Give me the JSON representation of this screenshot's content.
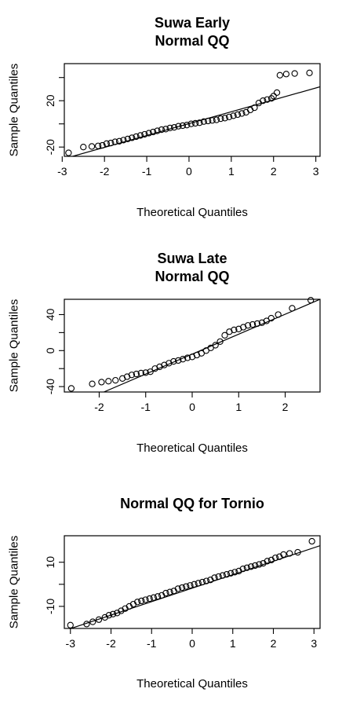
{
  "chart_data": [
    {
      "type": "scatter",
      "title_lines": [
        "Suwa Early",
        "Normal QQ"
      ],
      "xlabel": "Theoretical Quantiles",
      "ylabel": "Sample Quantiles",
      "xlim": [
        -2.95,
        3.1
      ],
      "ylim": [
        -28,
        52
      ],
      "xticks": [
        -3,
        -2,
        -1,
        0,
        1,
        2,
        3
      ],
      "yticks": [
        -20,
        0,
        20,
        40
      ],
      "ytick_labels": [
        "-20",
        "",
        "20",
        ""
      ],
      "ref_line": [
        [
          -2.95,
          -30
        ],
        [
          3.1,
          32
        ]
      ],
      "points": [
        [
          -2.85,
          -25
        ],
        [
          -2.5,
          -20
        ],
        [
          -2.3,
          -19.5
        ],
        [
          -2.15,
          -19
        ],
        [
          -2.05,
          -18.5
        ],
        [
          -1.95,
          -17
        ],
        [
          -1.85,
          -16.5
        ],
        [
          -1.75,
          -15.5
        ],
        [
          -1.65,
          -15
        ],
        [
          -1.55,
          -14
        ],
        [
          -1.45,
          -13
        ],
        [
          -1.35,
          -12
        ],
        [
          -1.25,
          -11
        ],
        [
          -1.15,
          -10
        ],
        [
          -1.05,
          -9
        ],
        [
          -0.95,
          -8
        ],
        [
          -0.85,
          -7
        ],
        [
          -0.75,
          -6
        ],
        [
          -0.65,
          -5
        ],
        [
          -0.55,
          -4.5
        ],
        [
          -0.45,
          -3.5
        ],
        [
          -0.35,
          -3
        ],
        [
          -0.25,
          -2
        ],
        [
          -0.15,
          -1.5
        ],
        [
          -0.05,
          -1
        ],
        [
          0.05,
          0
        ],
        [
          0.15,
          0.5
        ],
        [
          0.25,
          1
        ],
        [
          0.35,
          2
        ],
        [
          0.45,
          2.5
        ],
        [
          0.55,
          3
        ],
        [
          0.65,
          3.5
        ],
        [
          0.75,
          4.5
        ],
        [
          0.85,
          5
        ],
        [
          0.95,
          6
        ],
        [
          1.05,
          7
        ],
        [
          1.15,
          8
        ],
        [
          1.25,
          9
        ],
        [
          1.35,
          10
        ],
        [
          1.45,
          12
        ],
        [
          1.55,
          14
        ],
        [
          1.65,
          18
        ],
        [
          1.75,
          20
        ],
        [
          1.85,
          21
        ],
        [
          1.95,
          22
        ],
        [
          2.0,
          24
        ],
        [
          2.08,
          27
        ],
        [
          2.15,
          42
        ],
        [
          2.3,
          43
        ],
        [
          2.5,
          43.5
        ],
        [
          2.85,
          44
        ]
      ]
    },
    {
      "type": "scatter",
      "title_lines": [
        "Suwa Late",
        "Normal QQ"
      ],
      "xlabel": "Theoretical Quantiles",
      "ylabel": "Sample Quantiles",
      "xlim": [
        -2.75,
        2.75
      ],
      "ylim": [
        -46,
        57
      ],
      "xticks": [
        -2,
        -1,
        0,
        1,
        2
      ],
      "yticks": [
        -40,
        -20,
        0,
        20,
        40
      ],
      "ytick_labels": [
        "-40",
        "",
        "0",
        "",
        "40"
      ],
      "ref_line": [
        [
          -1.9,
          -46
        ],
        [
          2.75,
          57
        ]
      ],
      "points": [
        [
          -2.6,
          -42
        ],
        [
          -2.15,
          -37
        ],
        [
          -1.95,
          -35
        ],
        [
          -1.8,
          -34
        ],
        [
          -1.65,
          -33
        ],
        [
          -1.5,
          -31
        ],
        [
          -1.4,
          -29
        ],
        [
          -1.3,
          -27
        ],
        [
          -1.2,
          -26
        ],
        [
          -1.1,
          -25
        ],
        [
          -1.0,
          -24.5
        ],
        [
          -0.9,
          -23.5
        ],
        [
          -0.8,
          -20
        ],
        [
          -0.7,
          -18
        ],
        [
          -0.6,
          -16
        ],
        [
          -0.5,
          -14
        ],
        [
          -0.4,
          -12
        ],
        [
          -0.3,
          -11
        ],
        [
          -0.2,
          -9.5
        ],
        [
          -0.1,
          -8
        ],
        [
          0.0,
          -7
        ],
        [
          0.1,
          -5
        ],
        [
          0.2,
          -3
        ],
        [
          0.3,
          0
        ],
        [
          0.4,
          3
        ],
        [
          0.5,
          6
        ],
        [
          0.6,
          10
        ],
        [
          0.7,
          17
        ],
        [
          0.8,
          21
        ],
        [
          0.9,
          23
        ],
        [
          1.0,
          24
        ],
        [
          1.1,
          26
        ],
        [
          1.2,
          28
        ],
        [
          1.3,
          29
        ],
        [
          1.4,
          30
        ],
        [
          1.5,
          31
        ],
        [
          1.6,
          33
        ],
        [
          1.7,
          36
        ],
        [
          1.85,
          40
        ],
        [
          2.15,
          47
        ],
        [
          2.55,
          56
        ]
      ]
    },
    {
      "type": "scatter",
      "title_lines": [
        "Normal QQ for Tornio"
      ],
      "xlabel": "Theoretical Quantiles",
      "ylabel": "Sample Quantiles",
      "xlim": [
        -3.15,
        3.15
      ],
      "ylim": [
        -20,
        22
      ],
      "xticks": [
        -3,
        -2,
        -1,
        0,
        1,
        2,
        3
      ],
      "yticks": [
        -10,
        0,
        10
      ],
      "ytick_labels": [
        "-10",
        "",
        "10"
      ],
      "ref_line": [
        [
          -3.15,
          -21
        ],
        [
          3.15,
          17.5
        ]
      ],
      "points": [
        [
          -3.0,
          -18.5
        ],
        [
          -2.6,
          -18
        ],
        [
          -2.45,
          -17
        ],
        [
          -2.3,
          -16
        ],
        [
          -2.15,
          -15
        ],
        [
          -2.05,
          -14
        ],
        [
          -1.95,
          -13.5
        ],
        [
          -1.85,
          -13
        ],
        [
          -1.75,
          -12
        ],
        [
          -1.65,
          -11
        ],
        [
          -1.55,
          -10
        ],
        [
          -1.45,
          -9
        ],
        [
          -1.35,
          -8
        ],
        [
          -1.25,
          -7.5
        ],
        [
          -1.15,
          -7
        ],
        [
          -1.05,
          -6.5
        ],
        [
          -0.95,
          -6
        ],
        [
          -0.85,
          -5.5
        ],
        [
          -0.75,
          -5
        ],
        [
          -0.65,
          -4
        ],
        [
          -0.55,
          -3.5
        ],
        [
          -0.45,
          -3
        ],
        [
          -0.35,
          -2
        ],
        [
          -0.25,
          -1.5
        ],
        [
          -0.15,
          -1
        ],
        [
          -0.05,
          -0.5
        ],
        [
          0.05,
          0
        ],
        [
          0.15,
          0.5
        ],
        [
          0.25,
          1
        ],
        [
          0.35,
          1.5
        ],
        [
          0.45,
          2
        ],
        [
          0.55,
          3
        ],
        [
          0.65,
          3.5
        ],
        [
          0.75,
          4
        ],
        [
          0.85,
          4.5
        ],
        [
          0.95,
          5
        ],
        [
          1.05,
          5.5
        ],
        [
          1.15,
          6
        ],
        [
          1.25,
          7
        ],
        [
          1.35,
          7.5
        ],
        [
          1.45,
          8
        ],
        [
          1.55,
          8.5
        ],
        [
          1.65,
          9
        ],
        [
          1.75,
          9.5
        ],
        [
          1.85,
          10.5
        ],
        [
          1.95,
          11
        ],
        [
          2.05,
          12
        ],
        [
          2.15,
          12.5
        ],
        [
          2.25,
          13.5
        ],
        [
          2.4,
          14
        ],
        [
          2.6,
          14.5
        ],
        [
          2.95,
          19.5
        ]
      ]
    }
  ]
}
